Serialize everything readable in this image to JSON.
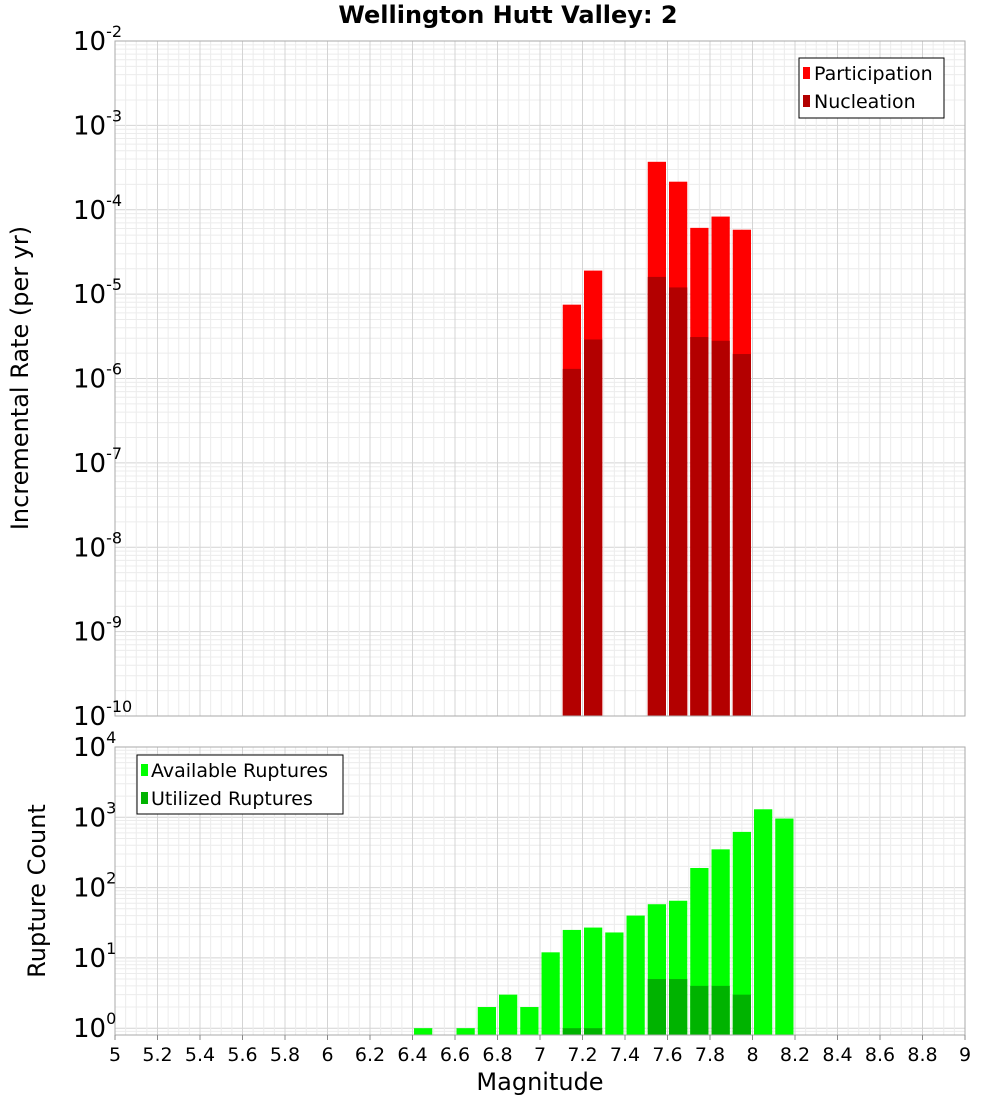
{
  "chart_data": {
    "title": "Wellington Hutt Valley: 2",
    "xlabel": "Magnitude",
    "xlim": [
      5,
      9
    ],
    "x_ticks": [
      "5",
      "5.2",
      "5.4",
      "5.6",
      "5.8",
      "6",
      "6.2",
      "6.4",
      "6.6",
      "6.8",
      "7",
      "7.2",
      "7.4",
      "7.6",
      "7.8",
      "8",
      "8.2",
      "8.4",
      "8.6",
      "8.8",
      "9"
    ],
    "grid": true,
    "panels": [
      {
        "type": "bar",
        "ylabel": "Incremental Rate (per yr)",
        "yscale": "log",
        "ylim": [
          1e-10,
          0.01
        ],
        "y_tick_exponents": [
          -10,
          -9,
          -8,
          -7,
          -6,
          -5,
          -4,
          -3,
          -2
        ],
        "legend_position": "top-right",
        "bar_width": 0.1,
        "series": [
          {
            "name": "Participation",
            "color": "#ff0000",
            "points": [
              [
                7.15,
                7.5e-06
              ],
              [
                7.25,
                1.9e-05
              ],
              [
                7.55,
                0.00037
              ],
              [
                7.65,
                0.000215
              ],
              [
                7.75,
                6.1e-05
              ],
              [
                7.85,
                8.3e-05
              ],
              [
                7.95,
                5.8e-05
              ]
            ]
          },
          {
            "name": "Nucleation",
            "color": "#b30000",
            "points": [
              [
                7.15,
                1.3e-06
              ],
              [
                7.25,
                2.9e-06
              ],
              [
                7.55,
                1.6e-05
              ],
              [
                7.65,
                1.2e-05
              ],
              [
                7.75,
                3.1e-06
              ],
              [
                7.85,
                2.8e-06
              ],
              [
                7.95,
                1.95e-06
              ]
            ]
          }
        ]
      },
      {
        "type": "bar",
        "ylabel": "Rupture Count",
        "yscale": "log",
        "ylim": [
          0.8,
          10000
        ],
        "y_tick_exponents": [
          0,
          1,
          2,
          3,
          4
        ],
        "legend_position": "top-left",
        "bar_width": 0.1,
        "series": [
          {
            "name": "Available Ruptures",
            "color": "#00ff00",
            "points": [
              [
                6.45,
                1
              ],
              [
                6.65,
                1
              ],
              [
                6.75,
                2
              ],
              [
                6.85,
                3
              ],
              [
                6.95,
                2
              ],
              [
                7.05,
                12
              ],
              [
                7.15,
                25
              ],
              [
                7.25,
                27
              ],
              [
                7.35,
                23
              ],
              [
                7.45,
                40
              ],
              [
                7.55,
                58
              ],
              [
                7.65,
                65
              ],
              [
                7.75,
                190
              ],
              [
                7.85,
                350
              ],
              [
                7.95,
                620
              ],
              [
                8.05,
                1300
              ],
              [
                8.15,
                960
              ]
            ]
          },
          {
            "name": "Utilized Ruptures",
            "color": "#00b300",
            "points": [
              [
                7.15,
                1
              ],
              [
                7.25,
                1
              ],
              [
                7.55,
                5
              ],
              [
                7.65,
                5
              ],
              [
                7.75,
                4
              ],
              [
                7.85,
                4
              ],
              [
                7.95,
                3
              ]
            ]
          }
        ]
      }
    ]
  }
}
